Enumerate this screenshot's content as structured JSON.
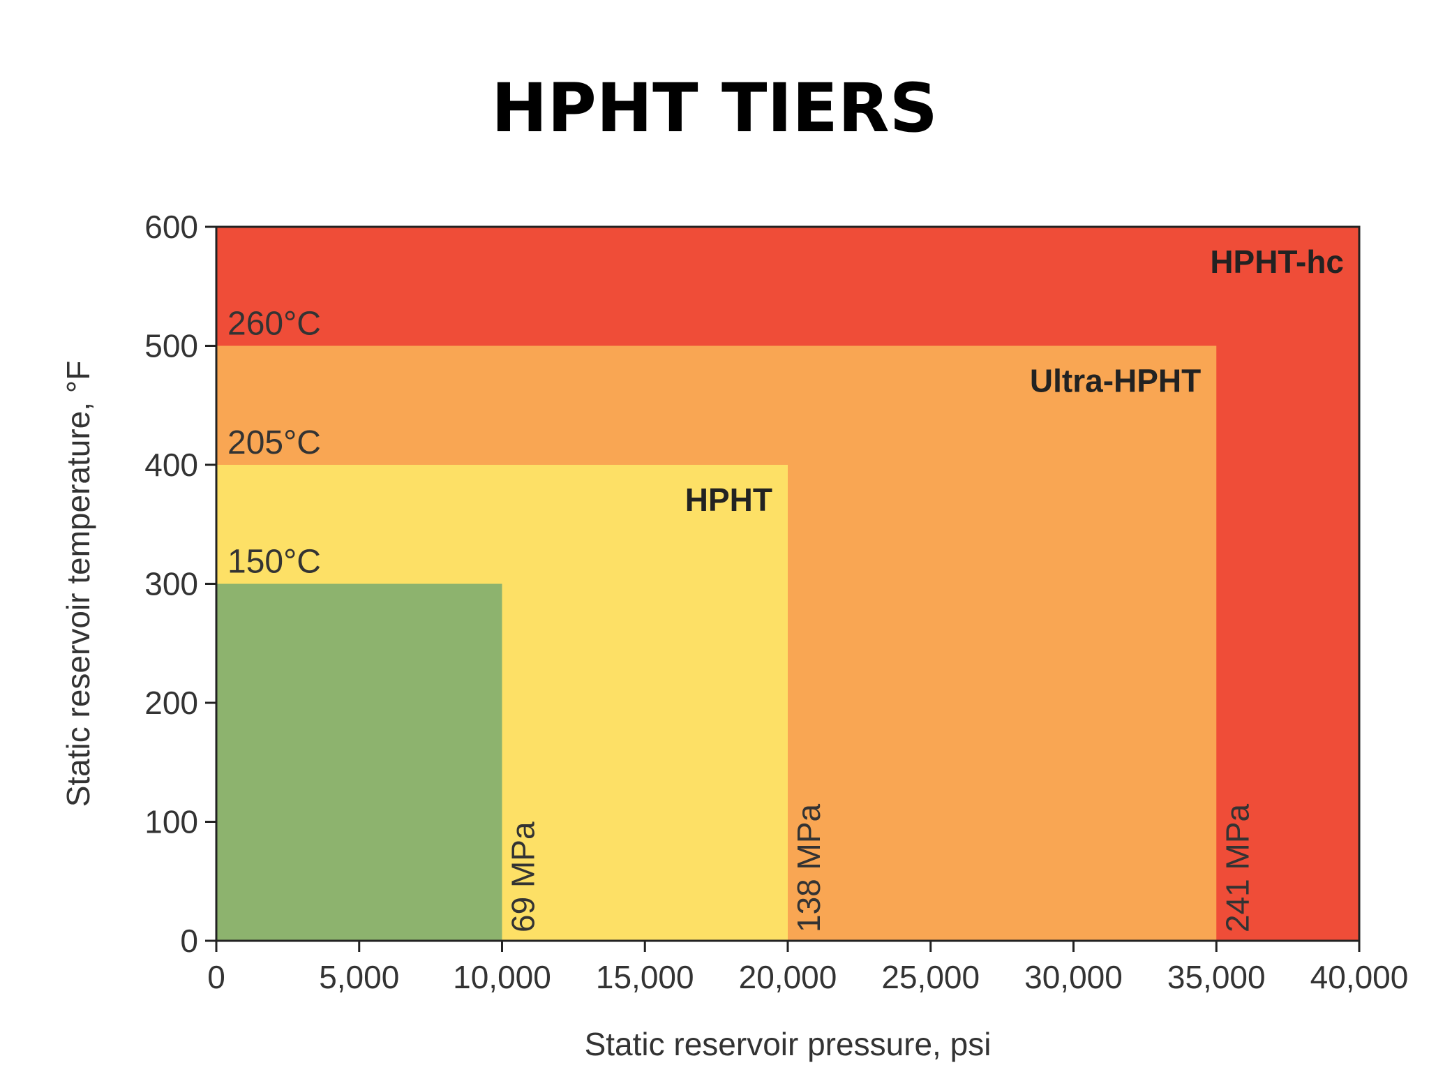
{
  "page": {
    "title": "HPHT TIERS"
  },
  "chart_data": {
    "type": "area",
    "title": "HPHT TIERS",
    "xlabel": "Static reservoir pressure, psi",
    "ylabel": "Static reservoir temperature, °F",
    "xlim": [
      0,
      40000
    ],
    "ylim": [
      0,
      600
    ],
    "x_ticks": [
      0,
      5000,
      10000,
      15000,
      20000,
      25000,
      30000,
      35000,
      40000
    ],
    "x_tick_labels": [
      "0",
      "5,000",
      "10,000",
      "15,000",
      "20,000",
      "25,000",
      "30,000",
      "35,000",
      "40,000"
    ],
    "y_ticks": [
      0,
      100,
      200,
      300,
      400,
      500,
      600
    ],
    "y_tick_labels": [
      "0",
      "100",
      "200",
      "300",
      "400",
      "500",
      "600"
    ],
    "grid": false,
    "regions": [
      {
        "label": "HPHT-hc",
        "max_pressure_psi": 40000,
        "max_temperature_f": 600,
        "color": "#ef4d38",
        "label_anchor": "top-right"
      },
      {
        "label": "Ultra-HPHT",
        "max_pressure_psi": 35000,
        "max_temperature_f": 500,
        "color": "#f9a653",
        "label_anchor": "top-right"
      },
      {
        "label": "HPHT",
        "max_pressure_psi": 20000,
        "max_temperature_f": 400,
        "color": "#fde066",
        "label_anchor": "top-right"
      },
      {
        "label": "",
        "max_pressure_psi": 10000,
        "max_temperature_f": 300,
        "color": "#8db36e",
        "label_anchor": "none"
      }
    ],
    "temperature_annotations": [
      {
        "text": "260°C",
        "temperature_f": 500
      },
      {
        "text": "205°C",
        "temperature_f": 400
      },
      {
        "text": "150°C",
        "temperature_f": 300
      }
    ],
    "pressure_annotations": [
      {
        "text": "69 MPa",
        "pressure_psi": 10000
      },
      {
        "text": "138 MPa",
        "pressure_psi": 20000
      },
      {
        "text": "241 MPa",
        "pressure_psi": 35000
      }
    ]
  }
}
